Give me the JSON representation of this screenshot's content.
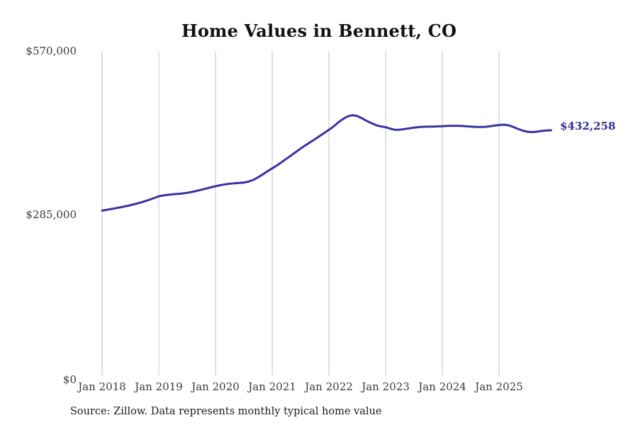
{
  "source_note": "Source: Zillow. Data represents monthly typical home value",
  "colors": {
    "line": "#3a32a2",
    "end_label": "#2f2d91",
    "gridline": "#c2c2c2",
    "tick_text": "#3a3a3a",
    "title_text": "#111111"
  },
  "chart_data": {
    "type": "line",
    "title": "Home Values in Bennett, CO",
    "xlabel": "",
    "ylabel": "",
    "x_ticks": [
      "Jan 2018",
      "Jan 2019",
      "Jan 2020",
      "Jan 2021",
      "Jan 2022",
      "Jan 2023",
      "Jan 2024",
      "Jan 2025"
    ],
    "y_ticks": [
      "$570,000",
      "$285,000",
      "$0"
    ],
    "ylim": [
      0,
      570000
    ],
    "grid": "vertical-only",
    "legend": "none",
    "x_start": "2018-01",
    "x_frequency": "monthly",
    "end_label": "$432,258",
    "end_value": 432258,
    "series": [
      {
        "name": "Typical home value",
        "values": [
          292500,
          294000,
          295500,
          297000,
          298600,
          300300,
          302100,
          304100,
          306300,
          308800,
          311500,
          314400,
          317500,
          319000,
          320100,
          320900,
          321600,
          322400,
          323500,
          325000,
          326800,
          328800,
          330900,
          333000,
          335000,
          336700,
          338200,
          339300,
          340100,
          340600,
          341300,
          343000,
          346000,
          350500,
          355500,
          361000,
          366000,
          371200,
          376800,
          382600,
          388500,
          394500,
          400300,
          405900,
          411200,
          416500,
          422000,
          427500,
          433000,
          439000,
          446000,
          452000,
          456500,
          458500,
          457000,
          453000,
          448500,
          444500,
          441000,
          439000,
          437500,
          435000,
          433000,
          433200,
          434300,
          435600,
          436800,
          437800,
          438300,
          438500,
          438600,
          439000,
          439300,
          439700,
          440000,
          440000,
          439700,
          439200,
          438600,
          438100,
          437900,
          438200,
          439000,
          440200,
          441300,
          442000,
          440800,
          438000,
          434600,
          431600,
          429600,
          429000,
          429800,
          431000,
          431900,
          432258
        ]
      }
    ]
  }
}
